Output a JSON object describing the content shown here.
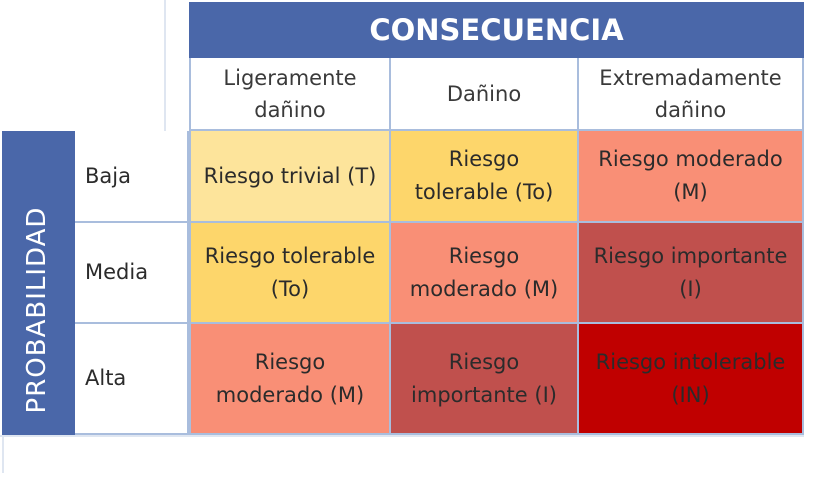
{
  "header": {
    "consequence_title": "CONSECUENCIA",
    "probability_title": "PROBABILIDAD"
  },
  "columns": [
    {
      "line1": "Ligeramente",
      "line2": "dañino"
    },
    {
      "line1": "Dañino",
      "line2": ""
    },
    {
      "line1": "Extremadamente",
      "line2": "dañino"
    }
  ],
  "rows": [
    {
      "label": "Baja"
    },
    {
      "label": "Media"
    },
    {
      "label": "Alta"
    }
  ],
  "cells": [
    [
      {
        "line1": "Riesgo trivial (T)",
        "line2": "",
        "color": "#fde49b"
      },
      {
        "line1": "Riesgo",
        "line2": "tolerable (To)",
        "color": "#fdd66b"
      },
      {
        "line1": "Riesgo moderado",
        "line2": "(M)",
        "color": "#f98f76"
      }
    ],
    [
      {
        "line1": "Riesgo tolerable",
        "line2": "(To)",
        "color": "#fdd66b"
      },
      {
        "line1": "Riesgo",
        "line2": "moderado (M)",
        "color": "#f98f76"
      },
      {
        "line1": "Riesgo importante",
        "line2": "(I)",
        "color": "#c0504d"
      }
    ],
    [
      {
        "line1": "Riesgo",
        "line2": "moderado (M)",
        "color": "#f98f76"
      },
      {
        "line1": "Riesgo",
        "line2": "importante (I)",
        "color": "#c0504d"
      },
      {
        "line1": "Riesgo intolerable",
        "line2": "(IN)",
        "color": "#c00000"
      }
    ]
  ]
}
